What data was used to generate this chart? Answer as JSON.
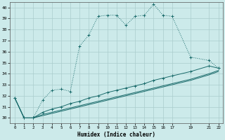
{
  "xlabel": "Humidex (Indice chaleur)",
  "background_color": "#cceaea",
  "grid_color": "#aacccc",
  "line_color": "#1a6b6b",
  "xlim": [
    -0.5,
    22.5
  ],
  "ylim": [
    29.5,
    40.5
  ],
  "xticks": [
    0,
    1,
    2,
    3,
    4,
    5,
    6,
    7,
    8,
    9,
    10,
    11,
    12,
    13,
    14,
    15,
    16,
    17,
    19,
    21,
    22
  ],
  "yticks": [
    30,
    31,
    32,
    33,
    34,
    35,
    36,
    37,
    38,
    39,
    40
  ],
  "series1": [
    [
      0,
      31.8
    ],
    [
      1,
      30.0
    ],
    [
      2,
      30.0
    ],
    [
      3,
      31.6
    ],
    [
      4,
      32.5
    ],
    [
      5,
      32.6
    ],
    [
      6,
      32.4
    ],
    [
      7,
      36.5
    ],
    [
      8,
      37.5
    ],
    [
      9,
      39.2
    ],
    [
      10,
      39.3
    ],
    [
      11,
      39.3
    ],
    [
      12,
      38.4
    ],
    [
      13,
      39.2
    ],
    [
      14,
      39.3
    ],
    [
      15,
      40.3
    ],
    [
      16,
      39.3
    ],
    [
      17,
      39.2
    ],
    [
      19,
      35.5
    ],
    [
      21,
      35.2
    ],
    [
      22,
      34.5
    ]
  ],
  "series2": [
    [
      0,
      31.8
    ],
    [
      1,
      30.0
    ],
    [
      2,
      30.0
    ],
    [
      3,
      30.5
    ],
    [
      4,
      30.8
    ],
    [
      5,
      31.0
    ],
    [
      6,
      31.3
    ],
    [
      7,
      31.5
    ],
    [
      8,
      31.8
    ],
    [
      9,
      32.0
    ],
    [
      10,
      32.3
    ],
    [
      11,
      32.5
    ],
    [
      12,
      32.7
    ],
    [
      13,
      32.9
    ],
    [
      14,
      33.1
    ],
    [
      15,
      33.4
    ],
    [
      16,
      33.6
    ],
    [
      17,
      33.8
    ],
    [
      19,
      34.2
    ],
    [
      21,
      34.7
    ],
    [
      22,
      34.5
    ]
  ],
  "series3": [
    [
      0,
      31.8
    ],
    [
      1,
      30.0
    ],
    [
      2,
      30.0
    ],
    [
      3,
      30.3
    ],
    [
      4,
      30.5
    ],
    [
      5,
      30.7
    ],
    [
      6,
      30.9
    ],
    [
      7,
      31.1
    ],
    [
      8,
      31.3
    ],
    [
      9,
      31.5
    ],
    [
      10,
      31.7
    ],
    [
      11,
      31.9
    ],
    [
      12,
      32.1
    ],
    [
      13,
      32.3
    ],
    [
      14,
      32.5
    ],
    [
      15,
      32.7
    ],
    [
      16,
      32.9
    ],
    [
      17,
      33.1
    ],
    [
      19,
      33.5
    ],
    [
      21,
      34.0
    ],
    [
      22,
      34.3
    ]
  ],
  "series4": [
    [
      0,
      31.8
    ],
    [
      1,
      30.0
    ],
    [
      2,
      30.0
    ],
    [
      3,
      30.2
    ],
    [
      4,
      30.4
    ],
    [
      5,
      30.6
    ],
    [
      6,
      30.8
    ],
    [
      7,
      31.0
    ],
    [
      8,
      31.2
    ],
    [
      9,
      31.4
    ],
    [
      10,
      31.6
    ],
    [
      11,
      31.8
    ],
    [
      12,
      32.0
    ],
    [
      13,
      32.2
    ],
    [
      14,
      32.4
    ],
    [
      15,
      32.6
    ],
    [
      16,
      32.8
    ],
    [
      17,
      33.0
    ],
    [
      19,
      33.4
    ],
    [
      21,
      33.9
    ],
    [
      22,
      34.2
    ]
  ]
}
